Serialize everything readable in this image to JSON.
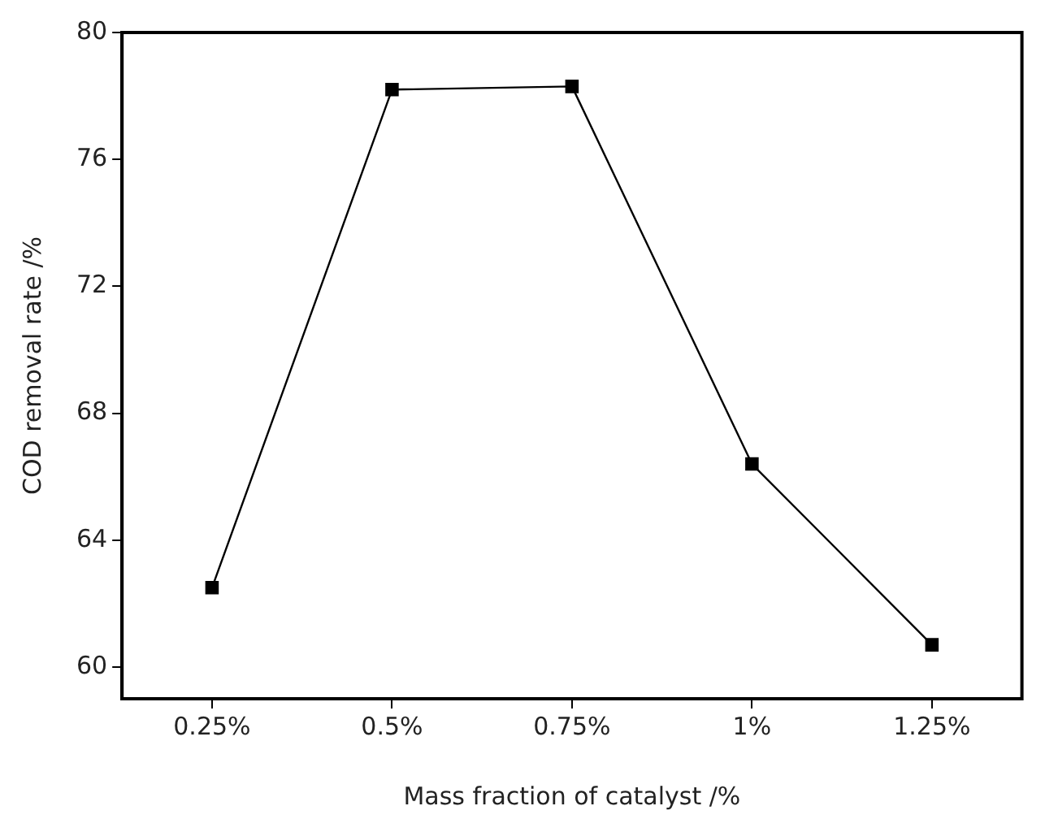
{
  "chart_data": {
    "type": "line",
    "xlabel": "Mass fraction of catalyst /%",
    "ylabel": "COD removal rate /%",
    "categories": [
      "0.25%",
      "0.5%",
      "0.75%",
      "1%",
      "1.25%"
    ],
    "series": [
      {
        "color": "#000000",
        "values": [
          62.5,
          78.2,
          78.3,
          66.4,
          60.7
        ]
      }
    ],
    "ylim": [
      59,
      80
    ],
    "yticks": [
      60,
      64,
      68,
      72,
      76,
      80
    ],
    "grid": false,
    "legend": false,
    "marker": "square",
    "line_style": "solid"
  }
}
